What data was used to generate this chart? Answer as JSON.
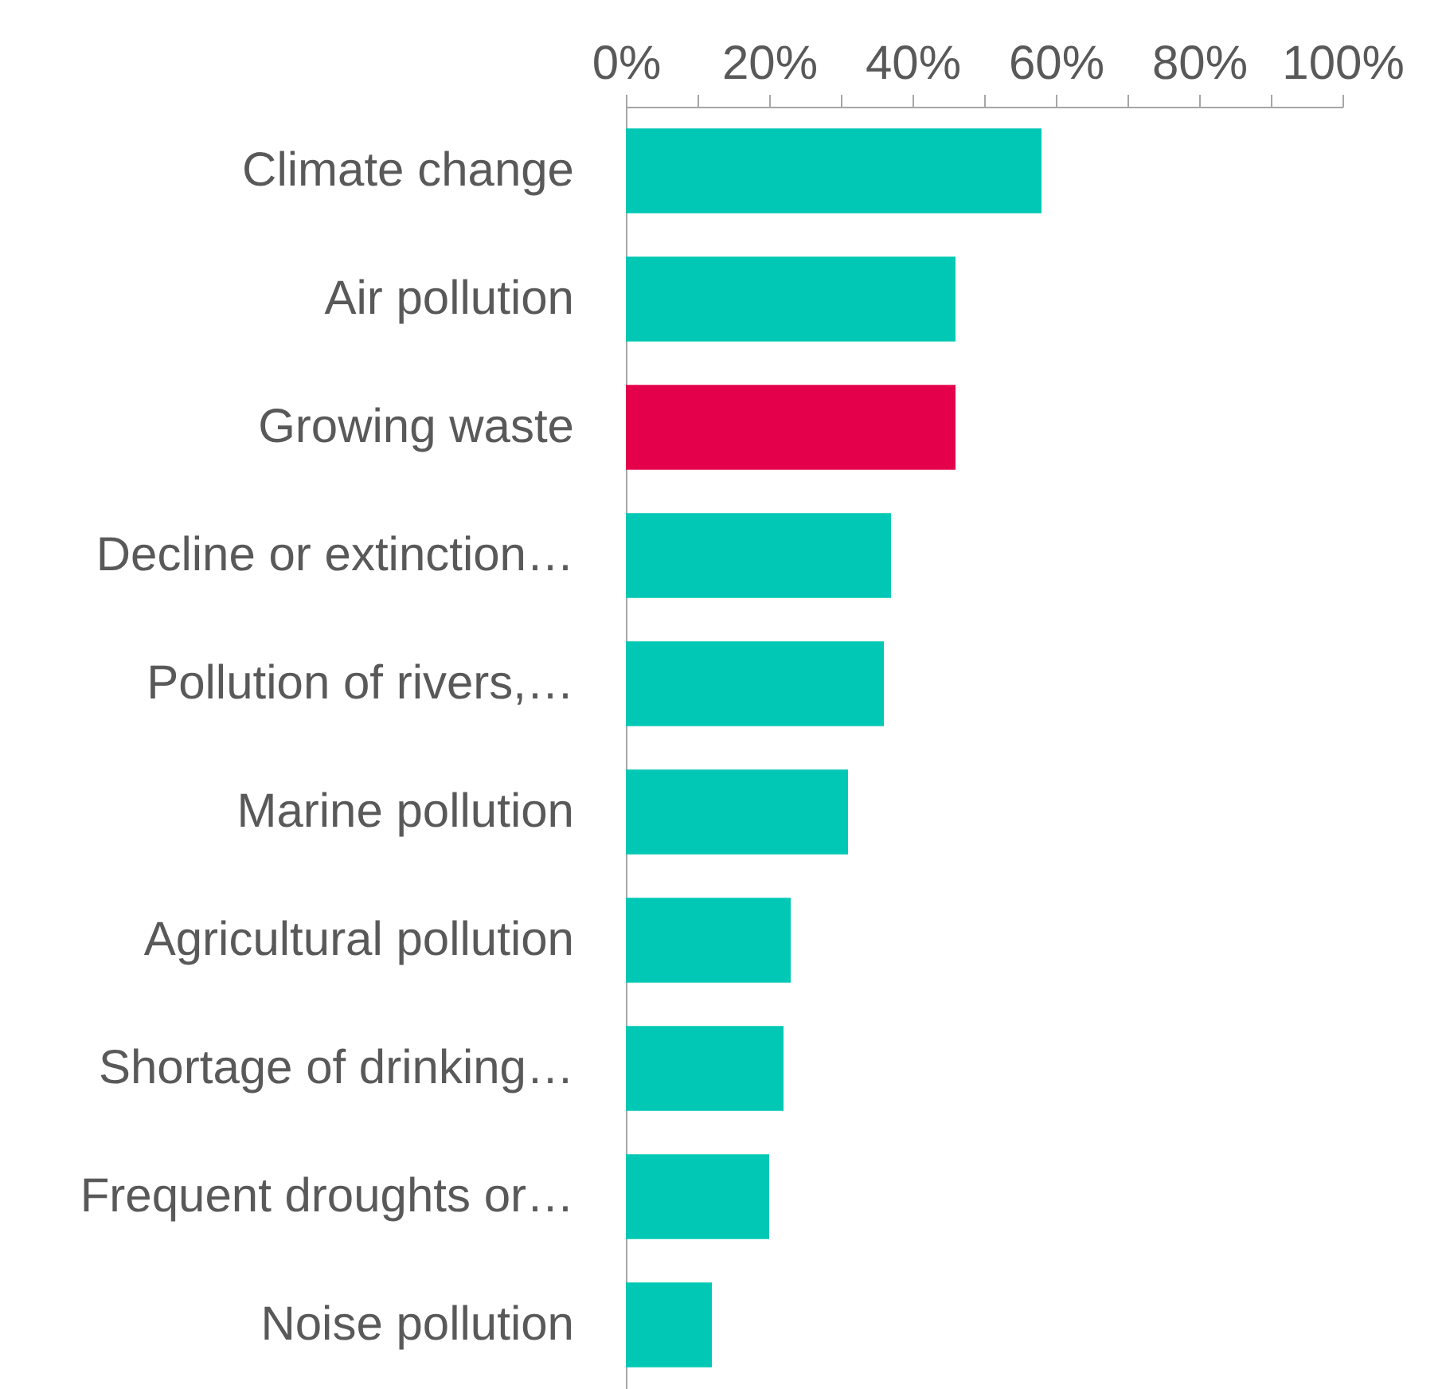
{
  "chart_data": {
    "type": "bar",
    "orientation": "horizontal",
    "categories": [
      "Climate change",
      "Air pollution",
      "Growing waste",
      "Decline or extinction…",
      "Pollution of rivers,…",
      "Marine pollution",
      "Agricultural pollution",
      "Shortage of drinking…",
      "Frequent droughts or…",
      "Noise pollution"
    ],
    "values": [
      58,
      46,
      46,
      37,
      36,
      31,
      23,
      22,
      20,
      12
    ],
    "colors": [
      "#00c8b4",
      "#00c8b4",
      "#e4004b",
      "#00c8b4",
      "#00c8b4",
      "#00c8b4",
      "#00c8b4",
      "#00c8b4",
      "#00c8b4",
      "#00c8b4"
    ],
    "xlim": [
      0,
      100
    ],
    "xticks": [
      {
        "value": 0,
        "label": "0%"
      },
      {
        "value": 10,
        "label": null
      },
      {
        "value": 20,
        "label": "20%"
      },
      {
        "value": 30,
        "label": null
      },
      {
        "value": 40,
        "label": "40%"
      },
      {
        "value": 50,
        "label": null
      },
      {
        "value": 60,
        "label": "60%"
      },
      {
        "value": 70,
        "label": null
      },
      {
        "value": 80,
        "label": "80%"
      },
      {
        "value": 90,
        "label": null
      },
      {
        "value": 100,
        "label": "100%"
      }
    ],
    "grid": false,
    "legend": false
  }
}
